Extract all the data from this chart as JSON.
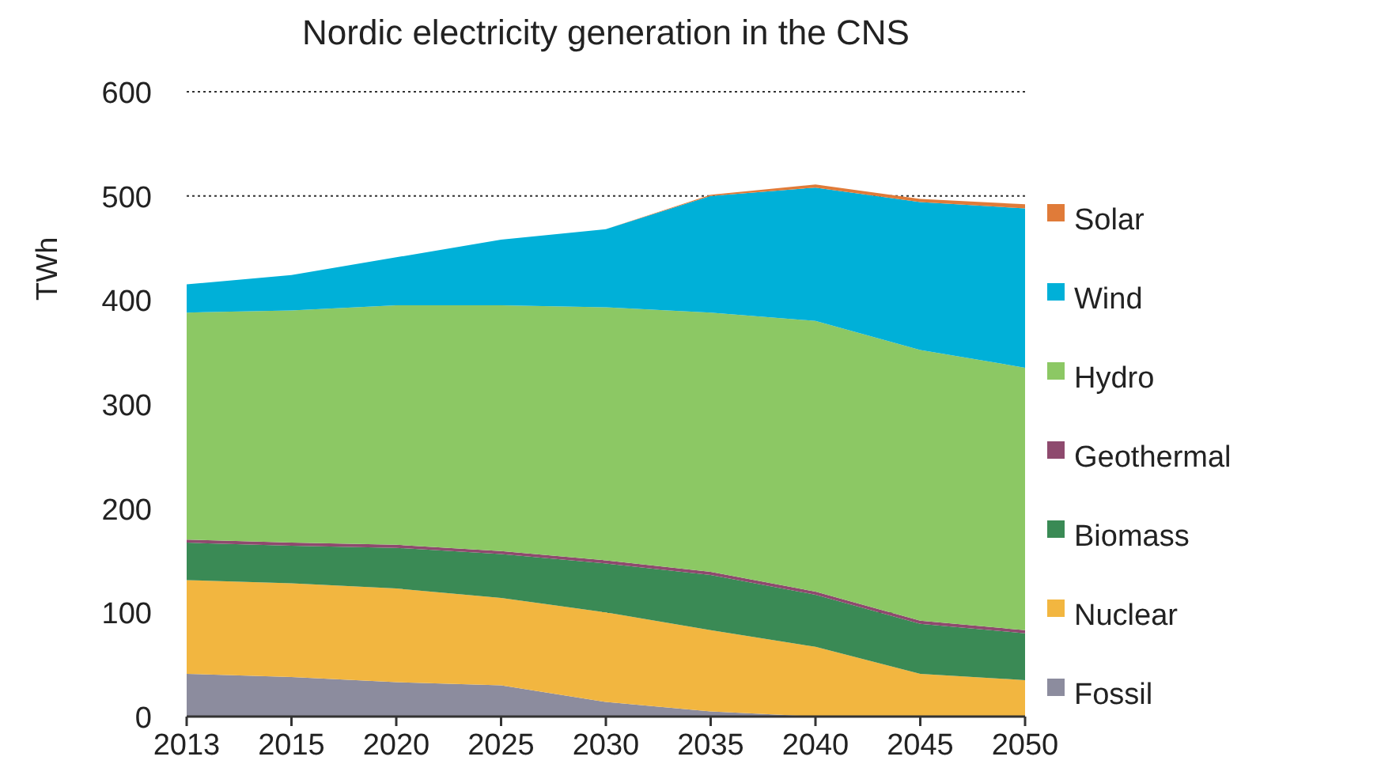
{
  "chart_data": {
    "type": "area",
    "stacked": true,
    "title": "Nordic electricity generation in the CNS",
    "ylabel": "TWh",
    "categories": [
      "2013",
      "2015",
      "2020",
      "2025",
      "2030",
      "2035",
      "2040",
      "2045",
      "2050"
    ],
    "series": [
      {
        "name": "Fossil",
        "color": "#8c8c9e",
        "values": [
          41,
          38,
          33,
          30,
          14,
          5,
          0,
          0,
          0
        ]
      },
      {
        "name": "Nuclear",
        "color": "#f2b640",
        "values": [
          90,
          90,
          90,
          84,
          86,
          78,
          67,
          41,
          35
        ]
      },
      {
        "name": "Biomass",
        "color": "#3a8a55",
        "values": [
          36,
          36,
          39,
          42,
          47,
          53,
          50,
          48,
          45
        ]
      },
      {
        "name": "Geothermal",
        "color": "#8e4a6e",
        "values": [
          3,
          3,
          3,
          3,
          3,
          3,
          3,
          3,
          3
        ]
      },
      {
        "name": "Hydro",
        "color": "#8cc864",
        "values": [
          218,
          223,
          230,
          236,
          243,
          249,
          260,
          260,
          252
        ]
      },
      {
        "name": "Wind",
        "color": "#00b0d8",
        "values": [
          27,
          34,
          46,
          63,
          75,
          112,
          128,
          142,
          153
        ]
      },
      {
        "name": "Solar",
        "color": "#e07b39",
        "values": [
          0,
          0,
          0,
          0,
          0,
          1,
          3,
          3,
          4
        ]
      }
    ],
    "ylim": [
      0,
      600
    ],
    "yticks": [
      0,
      100,
      200,
      300,
      400,
      500,
      600
    ],
    "grid": "y",
    "legend": "right"
  }
}
